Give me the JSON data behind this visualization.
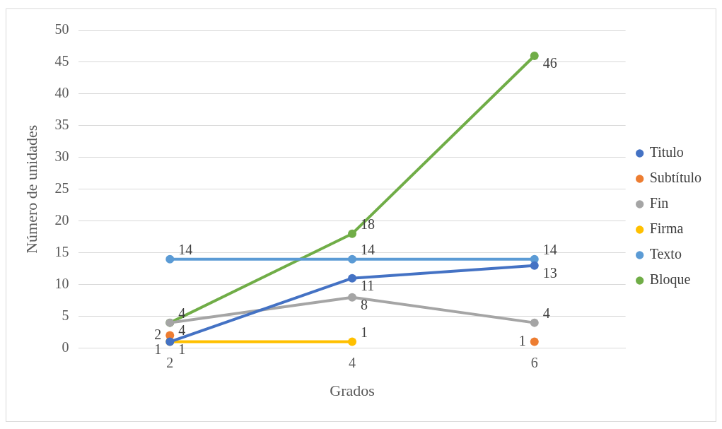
{
  "chart_data": {
    "type": "line",
    "xlabel": "Grados",
    "ylabel": "Número de unidades",
    "categories": [
      "2",
      "4",
      "6"
    ],
    "series": [
      {
        "name": "Titulo",
        "color": "#4472c4",
        "values": [
          1,
          11,
          13
        ]
      },
      {
        "name": "Subtítulo",
        "type": "scatter",
        "color": "#ed7d31",
        "values": [
          2,
          null,
          1
        ]
      },
      {
        "name": "Fin",
        "color": "#a5a5a5",
        "values": [
          4,
          8,
          4
        ]
      },
      {
        "name": "Firma",
        "color": "#ffc000",
        "values": [
          1,
          1,
          null
        ]
      },
      {
        "name": "Texto",
        "color": "#5b9bd5",
        "values": [
          14,
          14,
          14
        ]
      },
      {
        "name": "Bloque",
        "color": "#70ad47",
        "values": [
          4,
          18,
          46
        ]
      }
    ],
    "ylim": [
      0,
      50
    ],
    "yticks": [
      0,
      5,
      10,
      15,
      20,
      25,
      30,
      35,
      40,
      45,
      50
    ],
    "grid": "y",
    "legend": "right",
    "marker": "circle",
    "line_style": "solid",
    "data_labels": true
  }
}
